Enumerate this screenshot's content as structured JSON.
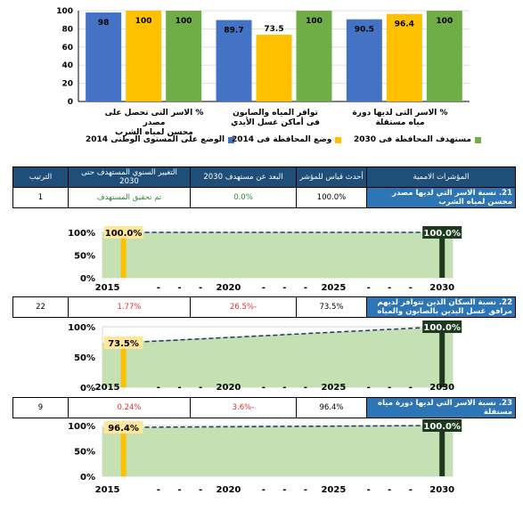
{
  "colors": {
    "blue": "#4472c4",
    "yellow": "#ffc000",
    "green": "#70ad47",
    "trend_green": "#c5e0b3",
    "header": "#1f4e79",
    "indicator": "#2e75b6"
  },
  "chart_data": [
    {
      "type": "bar",
      "categories": [
        "% الاسر التى تحصل على مصدر محسن لمياه الشرب",
        "توافر المياه والصابون فى أماكن غسل الأيدي",
        "% الاسر التى لديها دورة مياه مستقلة"
      ],
      "series": [
        {
          "name": "الوضع على المستوى الوطنى 2014",
          "values": [
            98,
            89.7,
            90.5
          ]
        },
        {
          "name": "وضع المحافظة فى 2014",
          "values": [
            100,
            73.5,
            96.4
          ]
        },
        {
          "name": "مستهدف المحافظة فى 2030",
          "values": [
            100,
            100,
            100
          ]
        }
      ],
      "ylim": [
        0,
        100
      ],
      "yticks": [
        "0",
        "20",
        "40",
        "60",
        "80",
        "100"
      ],
      "value_labels": [
        [
          "98",
          "100",
          "100"
        ],
        [
          "89.7",
          "73.5",
          "100"
        ],
        [
          "90.5",
          "96.4",
          "100"
        ]
      ]
    },
    {
      "type": "line",
      "x_labels": [
        "2015",
        "2020",
        "2025",
        "2030"
      ],
      "yticks": [
        "0%",
        "50%",
        "100%"
      ],
      "start": 100.0,
      "end": 100.0,
      "start_label": "100.0%",
      "end_label": "100.0%"
    },
    {
      "type": "line",
      "x_labels": [
        "2015",
        "2020",
        "2025",
        "2030"
      ],
      "yticks": [
        "0%",
        "50%",
        "100%"
      ],
      "start": 73.5,
      "end": 100.0,
      "start_label": "73.5%",
      "end_label": "100.0%"
    },
    {
      "type": "line",
      "x_labels": [
        "2015",
        "2020",
        "2025",
        "2030"
      ],
      "yticks": [
        "0%",
        "50%",
        "100%"
      ],
      "start": 96.4,
      "end": 100.0,
      "start_label": "96.4%",
      "end_label": "100.0%"
    }
  ],
  "bar_categories_display": [
    [
      "% الاسر التى تحصل على مصدر",
      "محسن لمياه الشرب"
    ],
    [
      "توافر المياه والصابون",
      "فى أماكن غسل الأيدي"
    ],
    [
      "% الاسر التى لديها دورة",
      "مياه مستقلة"
    ]
  ],
  "table": {
    "headers": [
      "المؤشرات الاممية",
      "أحدث قياس للمؤشر",
      "البعد عن مستهدف 2030",
      "التغيير السنوي المستهدف حتى 2030",
      "الترتيب"
    ],
    "rows": [
      {
        "indicator": "21. نسبة الاسر التي لديها مصدر محسن لمياه الشرب",
        "latest": "100.0%",
        "gap": "0.0%",
        "annual": "تم تحقيق المستهدف",
        "rank": "1"
      },
      {
        "indicator": "22. نسبة السكان الذين تتوافر لديهم مرافق غسل اليدين بالصابون والمياه",
        "latest": "73.5%",
        "gap": "-26.5%",
        "annual": "1.77%",
        "rank": "22"
      },
      {
        "indicator": "23. نسبة الاسر التي لديها دورة مياه مستقلة",
        "latest": "96.4%",
        "gap": "-3.6%",
        "annual": "0.24%",
        "rank": "9"
      }
    ]
  },
  "dash": "-"
}
